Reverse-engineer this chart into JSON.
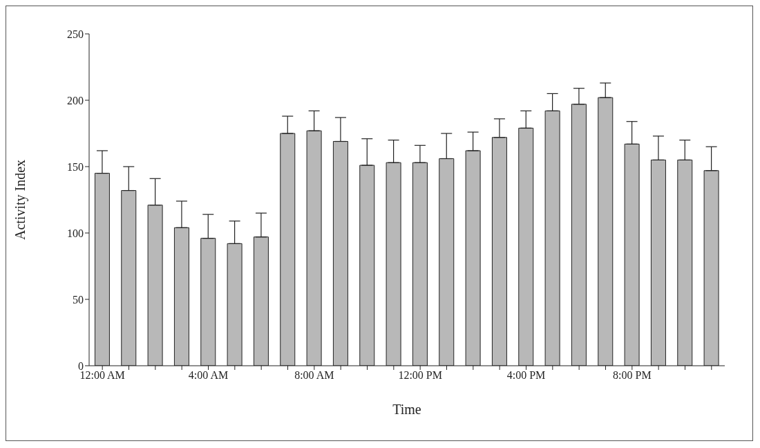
{
  "chart_data": {
    "type": "bar",
    "xlabel": "Time",
    "ylabel": "Activity Index",
    "categories": [
      "12:00 AM",
      null,
      null,
      null,
      "4:00 AM",
      null,
      null,
      null,
      "8:00 AM",
      null,
      null,
      null,
      "12:00 PM",
      null,
      null,
      null,
      "4:00 PM",
      null,
      null,
      null,
      "8:00 PM",
      null,
      null,
      null
    ],
    "values": [
      145,
      132,
      121,
      104,
      96,
      92,
      97,
      175,
      177,
      169,
      151,
      153,
      153,
      156,
      162,
      172,
      179,
      192,
      197,
      202,
      167,
      155,
      155,
      147
    ],
    "errors": [
      [
        145,
        162
      ],
      [
        132,
        150
      ],
      [
        121,
        141
      ],
      [
        104,
        124
      ],
      [
        96,
        114
      ],
      [
        92,
        109
      ],
      [
        97,
        115
      ],
      [
        175,
        188
      ],
      [
        177,
        192
      ],
      [
        169,
        187
      ],
      [
        151,
        171
      ],
      [
        153,
        170
      ],
      [
        153,
        166
      ],
      [
        156,
        175
      ],
      [
        162,
        176
      ],
      [
        172,
        186
      ],
      [
        179,
        192
      ],
      [
        192,
        205
      ],
      [
        197,
        209
      ],
      [
        202,
        213
      ],
      [
        167,
        184
      ],
      [
        155,
        173
      ],
      [
        155,
        170
      ],
      [
        147,
        165
      ]
    ],
    "color": "#b8b8b8",
    "ylim": [
      0,
      250
    ],
    "yticks": [
      0,
      50,
      100,
      150,
      200,
      250
    ]
  }
}
